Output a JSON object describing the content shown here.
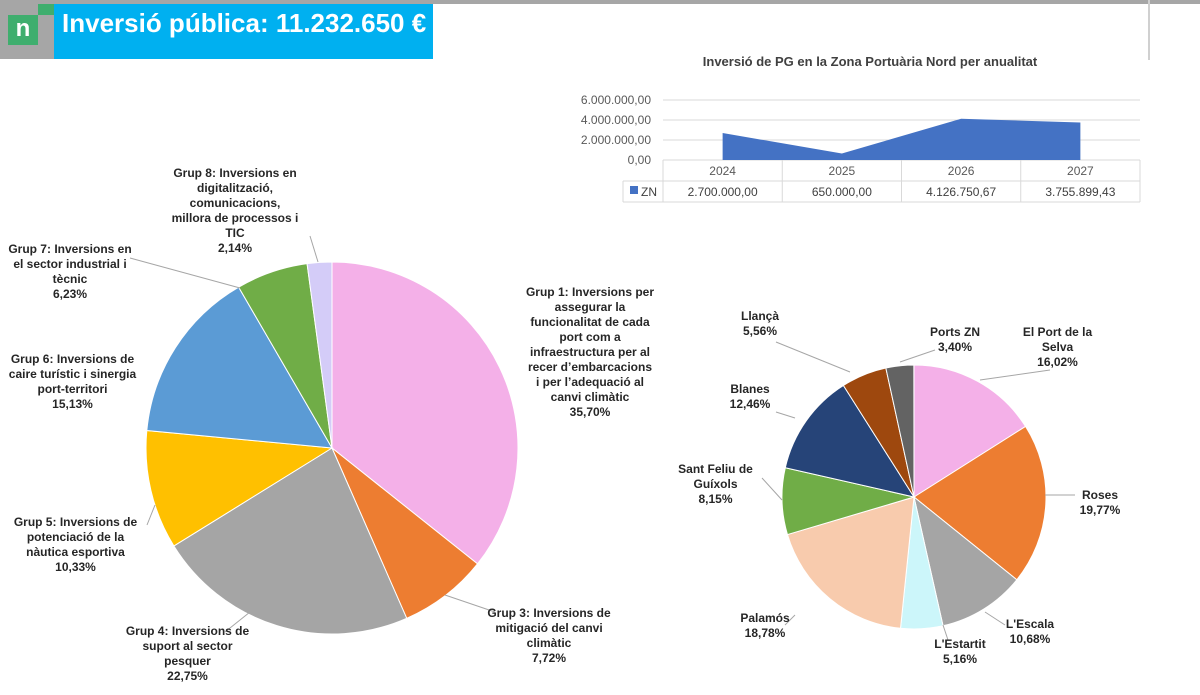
{
  "header": {
    "logo_text": "n",
    "title": "Inversió pública: 11.232.650 €"
  },
  "chart_data": [
    {
      "type": "area",
      "title": "Inversió de PG en la Zona Portuària Nord per anualitat",
      "categories": [
        "2024",
        "2025",
        "2026",
        "2027"
      ],
      "series": [
        {
          "name": "ZN",
          "values": [
            2700000.0,
            650000.0,
            4126750.67,
            3755899.43
          ],
          "color": "#4472c4"
        }
      ],
      "ylim": [
        0,
        6000000
      ],
      "yticks": [
        "0,00",
        "2.000.000,00",
        "4.000.000,00",
        "6.000.000,00"
      ],
      "table_values": [
        "2.700.000,00",
        "650.000,00",
        "4.126.750,67",
        "3.755.899,43"
      ],
      "grid": true,
      "legend": "data-table"
    },
    {
      "type": "pie",
      "slices": [
        {
          "label": "Grup 1: Inversions per assegurar la funcionalitat de cada port com a infraestructura per al recer d’embarcacions i per l’adequació al canvi climàtic",
          "value": 35.7,
          "pct": "35,70%",
          "color": "#f4b0e8"
        },
        {
          "label": "Grup 3: Inversions de mitigació del canvi climàtic",
          "value": 7.72,
          "pct": "7,72%",
          "color": "#ed7d31"
        },
        {
          "label": "Grup 4: Inversions de suport al sector pesquer",
          "value": 22.75,
          "pct": "22,75%",
          "color": "#a5a5a5"
        },
        {
          "label": "Grup 5: Inversions de potenciació de la nàutica esportiva",
          "value": 10.33,
          "pct": "10,33%",
          "color": "#ffc000"
        },
        {
          "label": "Grup 6: Inversions de caire turístic i sinergia port-territori",
          "value": 15.13,
          "pct": "15,13%",
          "color": "#5b9bd5"
        },
        {
          "label": "Grup 7: Inversions en el sector industrial i tècnic",
          "value": 6.23,
          "pct": "6,23%",
          "color": "#70ad47"
        },
        {
          "label": "Grup 8: Inversions en digitalització, comunicacions, millora de processos i TIC",
          "value": 2.14,
          "pct": "2,14%",
          "color": "#d4ccf8"
        }
      ]
    },
    {
      "type": "pie",
      "slices": [
        {
          "label": "El Port de la Selva",
          "value": 16.02,
          "pct": "16,02%",
          "color": "#f4b0e8"
        },
        {
          "label": "Roses",
          "value": 19.77,
          "pct": "19,77%",
          "color": "#ed7d31"
        },
        {
          "label": "L'Escala",
          "value": 10.68,
          "pct": "10,68%",
          "color": "#a5a5a5"
        },
        {
          "label": "L'Estartit",
          "value": 5.16,
          "pct": "5,16%",
          "color": "#ccf6fa"
        },
        {
          "label": "Palamós",
          "value": 18.78,
          "pct": "18,78%",
          "color": "#f8cbad"
        },
        {
          "label": "Sant Feliu de Guíxols",
          "value": 8.15,
          "pct": "8,15%",
          "color": "#70ad47"
        },
        {
          "label": "Blanes",
          "value": 12.46,
          "pct": "12,46%",
          "color": "#264478"
        },
        {
          "label": "Llançà",
          "value": 5.56,
          "pct": "5,56%",
          "color": "#9e480e"
        },
        {
          "label": "Ports ZN",
          "value": 3.4,
          "pct": "3,40%",
          "color": "#636363"
        }
      ]
    }
  ]
}
